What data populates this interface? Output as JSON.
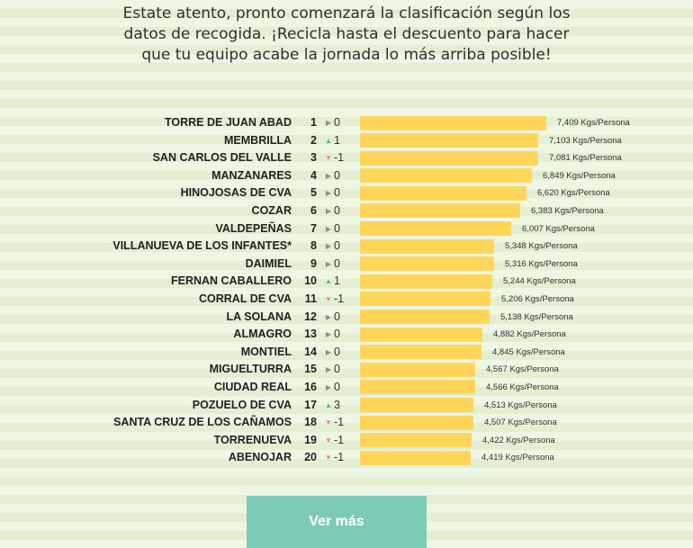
{
  "intro": "Estate atento, pronto comenzará la clasificación según los datos de recogida. ¡Recicla hasta el descuento para hacer que tu equipo acabe la jornada lo más arriba posible!",
  "colors": {
    "bar": "#ffd65a",
    "up_arrow": "#45b9a2",
    "down_arrow": "#f08878",
    "same_arrow": "#8e8e8e",
    "button": "#7ecbb5"
  },
  "ranking": [
    {
      "name": "TORRE DE JUAN ABAD",
      "position": "1",
      "trend": "same",
      "change": "0",
      "value": 7.409,
      "value_label": "7,409 Kgs/Persona"
    },
    {
      "name": "MEMBRILLA",
      "position": "2",
      "trend": "up",
      "change": "1",
      "value": 7.103,
      "value_label": "7,103 Kgs/Persona"
    },
    {
      "name": "SAN CARLOS DEL VALLE",
      "position": "3",
      "trend": "down",
      "change": "-1",
      "value": 7.081,
      "value_label": "7,081 Kgs/Persona"
    },
    {
      "name": "MANZANARES",
      "position": "4",
      "trend": "same",
      "change": "0",
      "value": 6.849,
      "value_label": "6,849 Kgs/Persona"
    },
    {
      "name": "HINOJOSAS DE CVA",
      "position": "5",
      "trend": "same",
      "change": "0",
      "value": 6.62,
      "value_label": "6,620 Kgs/Persona"
    },
    {
      "name": "COZAR",
      "position": "6",
      "trend": "same",
      "change": "0",
      "value": 6.383,
      "value_label": "6,383 Kgs/Persona"
    },
    {
      "name": "VALDEPEÑAS",
      "position": "7",
      "trend": "same",
      "change": "0",
      "value": 6.007,
      "value_label": "6,007 Kgs/Persona"
    },
    {
      "name": "VILLANUEVA DE LOS INFANTES*",
      "position": "8",
      "trend": "same",
      "change": "0",
      "value": 5.348,
      "value_label": "5,348 Kgs/Persona"
    },
    {
      "name": "DAIMIEL",
      "position": "9",
      "trend": "same",
      "change": "0",
      "value": 5.316,
      "value_label": "5,316 Kgs/Persona"
    },
    {
      "name": "FERNAN CABALLERO",
      "position": "10",
      "trend": "up",
      "change": "1",
      "value": 5.244,
      "value_label": "5,244 Kgs/Persona"
    },
    {
      "name": "CORRAL DE CVA",
      "position": "11",
      "trend": "down",
      "change": "-1",
      "value": 5.206,
      "value_label": "5,206 Kgs/Persona"
    },
    {
      "name": "LA SOLANA",
      "position": "12",
      "trend": "same",
      "change": "0",
      "value": 5.138,
      "value_label": "5,138 Kgs/Persona"
    },
    {
      "name": "ALMAGRO",
      "position": "13",
      "trend": "same",
      "change": "0",
      "value": 4.882,
      "value_label": "4,882 Kgs/Persona"
    },
    {
      "name": "MONTIEL",
      "position": "14",
      "trend": "same",
      "change": "0",
      "value": 4.845,
      "value_label": "4,845 Kgs/Persona"
    },
    {
      "name": "MIGUELTURRA",
      "position": "15",
      "trend": "same",
      "change": "0",
      "value": 4.567,
      "value_label": "4,567 Kgs/Persona"
    },
    {
      "name": "CIUDAD REAL",
      "position": "16",
      "trend": "same",
      "change": "0",
      "value": 4.566,
      "value_label": "4,566 Kgs/Persona"
    },
    {
      "name": "POZUELO DE CVA",
      "position": "17",
      "trend": "up",
      "change": "3",
      "value": 4.513,
      "value_label": "4,513 Kgs/Persona"
    },
    {
      "name": "SANTA CRUZ DE LOS CAÑAMOS",
      "position": "18",
      "trend": "down",
      "change": "-1",
      "value": 4.507,
      "value_label": "4,507 Kgs/Persona"
    },
    {
      "name": "TORRENUEVA",
      "position": "19",
      "trend": "down",
      "change": "-1",
      "value": 4.422,
      "value_label": "4,422 Kgs/Persona"
    },
    {
      "name": "ABENOJAR",
      "position": "20",
      "trend": "down",
      "change": "-1",
      "value": 4.419,
      "value_label": "4,419 Kgs/Persona"
    }
  ],
  "more_button": "Ver más"
}
